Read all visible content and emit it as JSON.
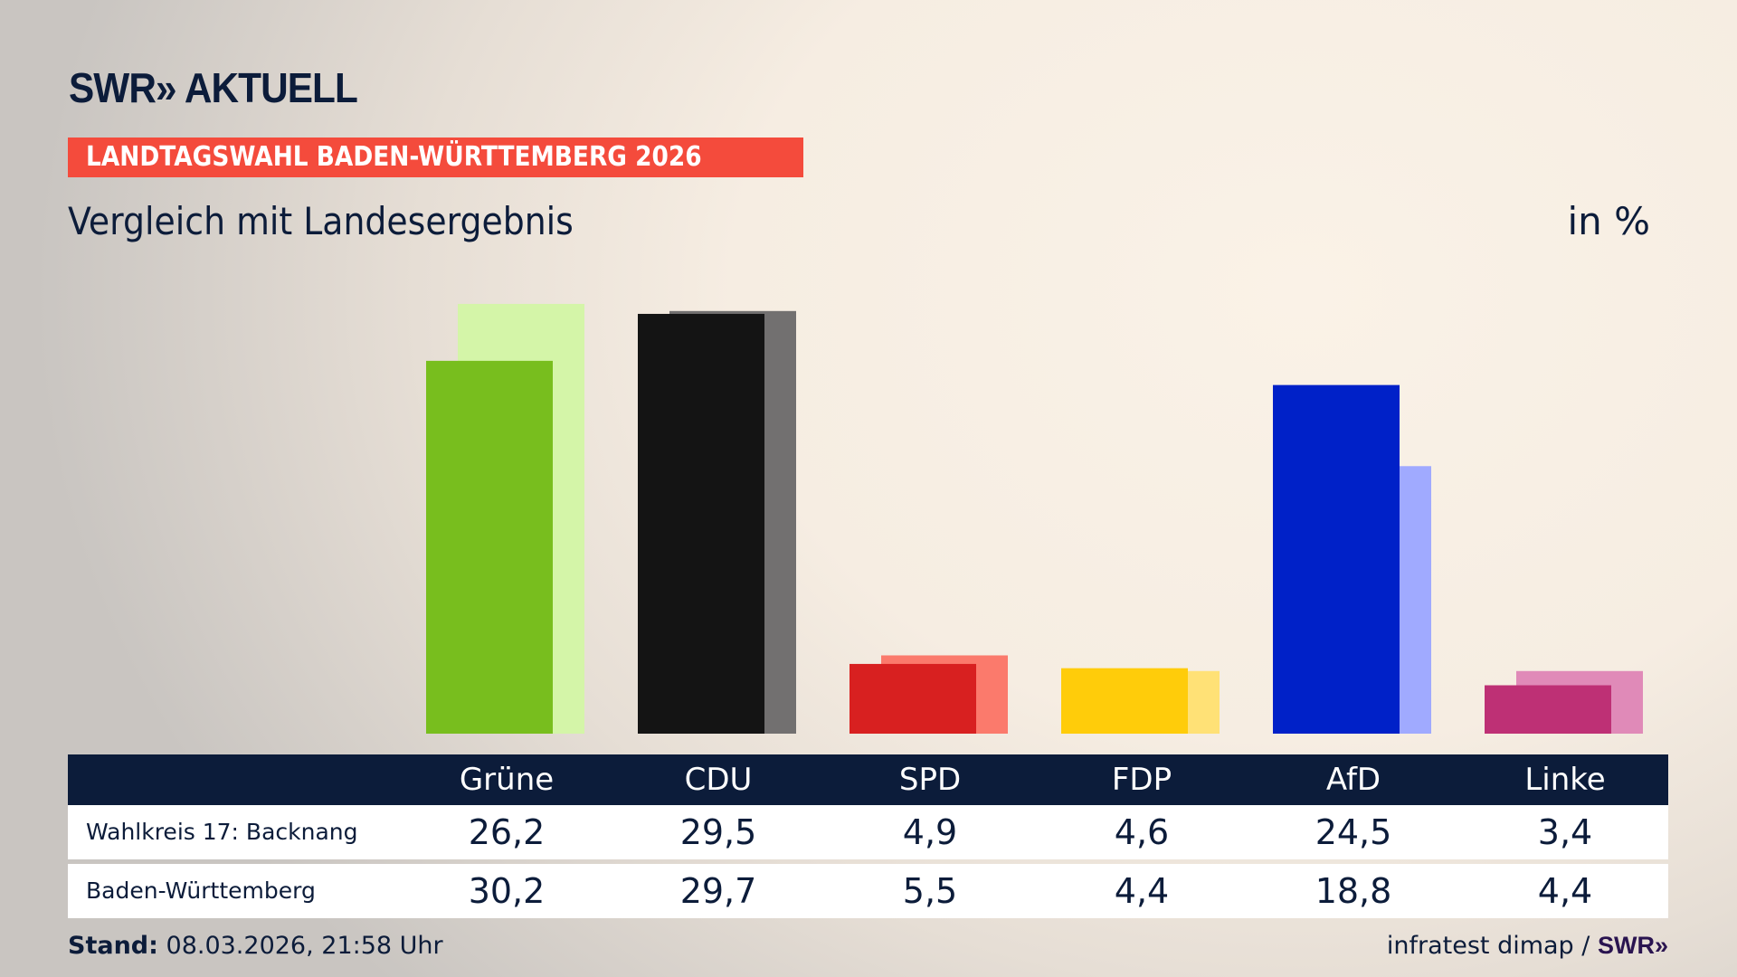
{
  "header": {
    "logo": "SWR» AKTUELL",
    "banner": "LANDTAGSWAHL BADEN-WÜRTTEMBERG 2026",
    "subtitle": "Vergleich mit Landesergebnis",
    "unit": "in %"
  },
  "chart_data": {
    "type": "bar",
    "categories": [
      "Grüne",
      "CDU",
      "SPD",
      "FDP",
      "AfD",
      "Linke"
    ],
    "series": [
      {
        "name": "Wahlkreis 17: Backnang",
        "values": [
          26.2,
          29.5,
          4.9,
          4.6,
          24.5,
          3.4
        ]
      },
      {
        "name": "Baden-Württemberg",
        "values": [
          30.2,
          29.7,
          5.5,
          4.4,
          18.8,
          4.4
        ]
      }
    ],
    "colors_front": [
      "#78be1e",
      "#141414",
      "#d82020",
      "#ffcc0a",
      "#0021c8",
      "#be3075"
    ],
    "colors_back": [
      "#d4f5a8",
      "#727070",
      "#fb7a6c",
      "#ffe176",
      "#a0aaff",
      "#e08ab8"
    ],
    "ylabel": "in %",
    "grid": false
  },
  "table": {
    "rows": [
      {
        "label": "Wahlkreis 17: Backnang",
        "values": [
          "26,2",
          "29,5",
          "4,9",
          "4,6",
          "24,5",
          "3,4"
        ]
      },
      {
        "label": "Baden-Württemberg",
        "values": [
          "30,2",
          "29,7",
          "5,5",
          "4,4",
          "18,8",
          "4,4"
        ]
      }
    ]
  },
  "footer": {
    "stand_label": "Stand:",
    "stand_value": "08.03.2026, 21:58 Uhr",
    "source": "infratest dimap /",
    "source_logo": "SWR»"
  }
}
